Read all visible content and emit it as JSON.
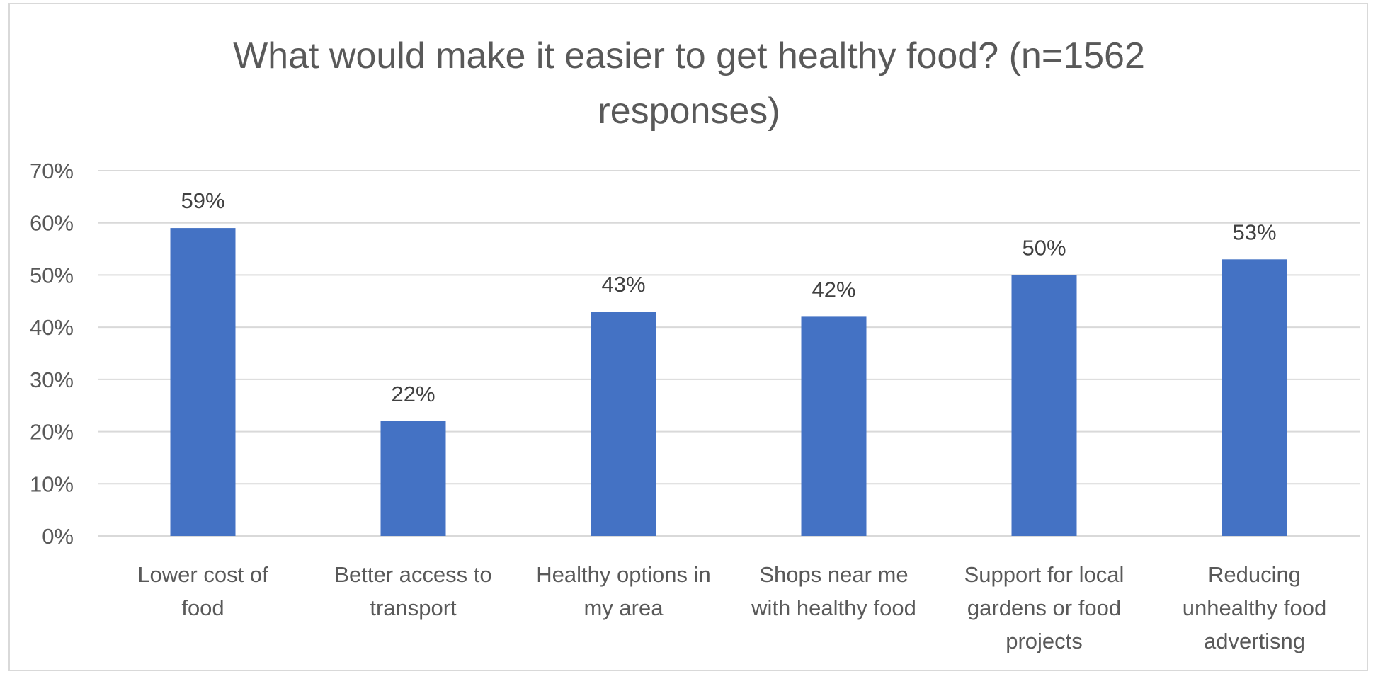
{
  "chart_data": {
    "type": "bar",
    "title": "What would make it easier to get healthy food? (n=1562 responses)",
    "title_lines": [
      "What would make it easier to get healthy food? (n=1562",
      "responses)"
    ],
    "categories": [
      "Lower cost of food",
      "Better access to transport",
      "Healthy options in my area",
      "Shops near me with healthy food",
      "Support for local gardens or food projects",
      "Reducing unhealthy food advertisng"
    ],
    "category_lines": [
      [
        "Lower cost of",
        "food"
      ],
      [
        "Better access to",
        "transport"
      ],
      [
        "Healthy options in",
        "my area"
      ],
      [
        "Shops near me",
        "with healthy food"
      ],
      [
        "Support for local",
        "gardens or food",
        "projects"
      ],
      [
        "Reducing",
        "unhealthy food",
        "advertisng"
      ]
    ],
    "values": [
      59,
      22,
      43,
      42,
      50,
      53
    ],
    "data_labels": [
      "59%",
      "22%",
      "43%",
      "42%",
      "50%",
      "53%"
    ],
    "ylim": [
      0,
      70
    ],
    "yticks": [
      0,
      10,
      20,
      30,
      40,
      50,
      60,
      70
    ],
    "ytick_labels": [
      "0%",
      "10%",
      "20%",
      "30%",
      "40%",
      "50%",
      "60%",
      "70%"
    ],
    "xlabel": "",
    "ylabel": "",
    "grid": true,
    "legend": "none",
    "bar_color": "#4472c4",
    "grid_color": "#d9d9d9"
  }
}
